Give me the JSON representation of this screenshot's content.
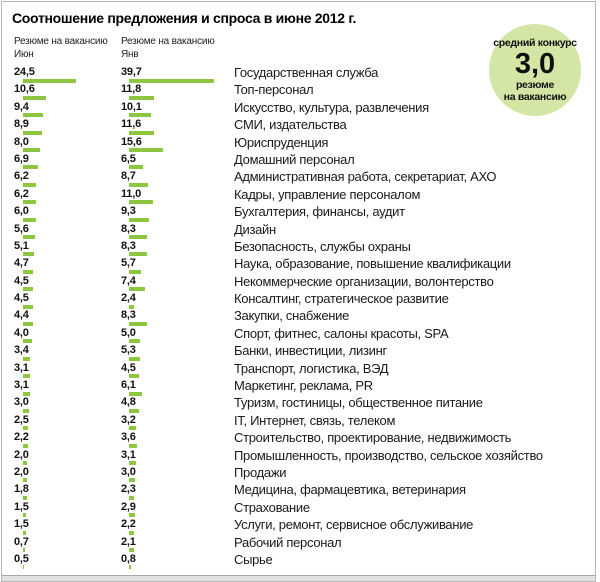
{
  "title": "Соотношение предложения и спроса в июне 2012 г.",
  "legend": {
    "jun": {
      "line1": "Резюме на вакансию",
      "line2": "Июн"
    },
    "jan": {
      "line1": "Резюме на вакансию",
      "line2": "Янв"
    }
  },
  "badge": {
    "top": "средний конкурс",
    "value": "3,0",
    "bottom_line1": "резюме",
    "bottom_line2": "на вакансию"
  },
  "colors": {
    "bar": "#8dc63f",
    "badge_fill": "#d3e6a5",
    "frame_border": "#b7b7b7",
    "bottom_strip": "#e1e1e1"
  },
  "chart_data": {
    "type": "bar",
    "orientation": "horizontal",
    "title": "Соотношение предложения и спроса в июне 2012 г.",
    "value_note": "резюме на вакансию, десятичный разделитель — запятая",
    "average_competition": 3.0,
    "legend_position": "top",
    "grid": false,
    "categories": [
      "Государственная служба",
      "Топ-персонал",
      "Искусство, культура, развлечения",
      "СМИ, издательства",
      "Юриспруденция",
      "Домашний персонал",
      "Административная работа, секретариат, АХО",
      "Кадры, управление персоналом",
      "Бухгалтерия, финансы, аудит",
      "Дизайн",
      "Безопасность, службы охраны",
      "Наука, образование, повышение квалификации",
      "Некоммерческие организации, волонтерство",
      "Консалтинг, стратегическое развитие",
      "Закупки, снабжение",
      "Спорт, фитнес, салоны красоты, SPA",
      "Банки, инвестиции, лизинг",
      "Транспорт, логистика, ВЭД",
      "Маркетинг, реклама, PR",
      "Туризм, гостиницы, общественное питание",
      "IT, Интернет, связь, телеком",
      "Строительство, проектирование, недвижимость",
      "Промышленность, производство, сельское хозяйство",
      "Продажи",
      "Медицина, фармацевтика, ветеринария",
      "Страхование",
      "Услуги, ремонт, сервисное обслуживание",
      "Рабочий персонал",
      "Сырье"
    ],
    "series": [
      {
        "name": "Резюме на вакансию Июн",
        "values": [
          24.5,
          10.6,
          9.4,
          8.9,
          8.0,
          6.9,
          6.2,
          6.2,
          6.0,
          5.6,
          5.1,
          4.7,
          4.5,
          4.5,
          4.4,
          4.0,
          3.4,
          3.1,
          3.1,
          3.0,
          2.5,
          2.2,
          2.0,
          2.0,
          1.8,
          1.5,
          1.5,
          0.7,
          0.5
        ]
      },
      {
        "name": "Резюме на вакансию Янв",
        "values": [
          39.7,
          11.8,
          10.1,
          11.6,
          15.6,
          6.5,
          8.7,
          11.0,
          9.3,
          8.3,
          8.3,
          5.7,
          7.4,
          2.4,
          8.3,
          5.0,
          5.3,
          4.5,
          6.1,
          4.8,
          3.2,
          3.6,
          3.1,
          3.0,
          2.3,
          2.9,
          2.2,
          2.1,
          0.8
        ]
      }
    ],
    "xlim": [
      0,
      40
    ]
  }
}
